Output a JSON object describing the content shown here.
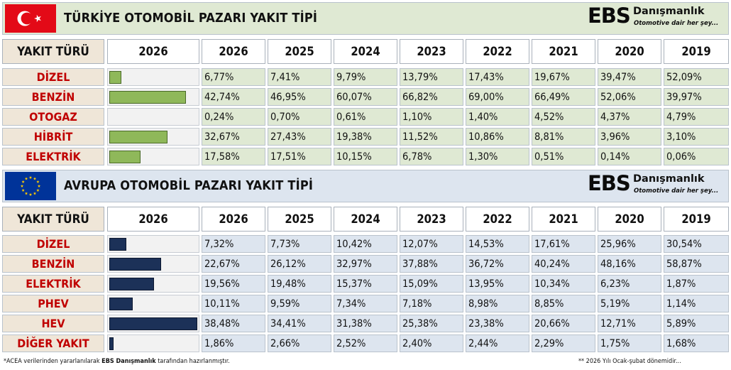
{
  "turkey": {
    "title": "TÜRKİYE OTOMOBİL PAZARI YAKIT TİPİ",
    "colors": {
      "banner": "#dfe9d3",
      "value_bg": "#dfe9d3",
      "bar": "#8fb85a",
      "label_text": "#c00000"
    }
  },
  "europe": {
    "title": "AVRUPA OTOMOBİL PAZARI YAKIT TİPİ",
    "colors": {
      "banner": "#dde5ef",
      "value_bg": "#dde5ef",
      "bar": "#1c3158",
      "label_text": "#c00000"
    }
  },
  "logo": {
    "brand": "EBS",
    "name": "Danışmanlık",
    "tagline": "Otomotive dair her şey..."
  },
  "footer": {
    "left_prefix": "*ACEA verilerinden yararlanılarak ",
    "left_brand": "EBS Danışmanlık",
    "left_suffix": " tarafından hazırlanmıştır.",
    "right": "** 2026 Yılı Ocak-şubat dönemidir..."
  },
  "chart_data": [
    {
      "type": "table",
      "title": "TÜRKİYE OTOMOBİL PAZARI YAKIT TİPİ",
      "header_label": "YAKIT TÜRÜ",
      "bar_column_label": "2026",
      "bar_max": 50,
      "years": [
        "2026",
        "2025",
        "2024",
        "2023",
        "2022",
        "2021",
        "2020",
        "2019"
      ],
      "rows": [
        {
          "fuel": "DİZEL",
          "bar": 6.77,
          "values": [
            "6,77%",
            "7,41%",
            "9,79%",
            "13,79%",
            "17,43%",
            "19,67%",
            "39,47%",
            "52,09%"
          ]
        },
        {
          "fuel": "BENZİN",
          "bar": 42.74,
          "values": [
            "42,74%",
            "46,95%",
            "60,07%",
            "66,82%",
            "69,00%",
            "66,49%",
            "52,06%",
            "39,97%"
          ]
        },
        {
          "fuel": "OTOGAZ",
          "bar": 0.24,
          "values": [
            "0,24%",
            "0,70%",
            "0,61%",
            "1,10%",
            "1,40%",
            "4,52%",
            "4,37%",
            "4,79%"
          ]
        },
        {
          "fuel": "HİBRİT",
          "bar": 32.67,
          "values": [
            "32,67%",
            "27,43%",
            "19,38%",
            "11,52%",
            "10,86%",
            "8,81%",
            "3,96%",
            "3,10%"
          ]
        },
        {
          "fuel": "ELEKTRİK",
          "bar": 17.58,
          "values": [
            "17,58%",
            "17,51%",
            "10,15%",
            "6,78%",
            "1,30%",
            "0,51%",
            "0,14%",
            "0,06%"
          ]
        }
      ]
    },
    {
      "type": "table",
      "title": "AVRUPA OTOMOBİL PAZARI YAKIT TİPİ",
      "header_label": "YAKIT TÜRÜ",
      "bar_column_label": "2026",
      "bar_max": 39,
      "years": [
        "2026",
        "2025",
        "2024",
        "2023",
        "2022",
        "2021",
        "2020",
        "2019"
      ],
      "rows": [
        {
          "fuel": "DİZEL",
          "bar": 7.32,
          "values": [
            "7,32%",
            "7,73%",
            "10,42%",
            "12,07%",
            "14,53%",
            "17,61%",
            "25,96%",
            "30,54%"
          ]
        },
        {
          "fuel": "BENZİN",
          "bar": 22.67,
          "values": [
            "22,67%",
            "26,12%",
            "32,97%",
            "37,88%",
            "36,72%",
            "40,24%",
            "48,16%",
            "58,87%"
          ]
        },
        {
          "fuel": "ELEKTRİK",
          "bar": 19.56,
          "values": [
            "19,56%",
            "19,48%",
            "15,37%",
            "15,09%",
            "13,95%",
            "10,34%",
            "6,23%",
            "1,87%"
          ]
        },
        {
          "fuel": "PHEV",
          "bar": 10.11,
          "values": [
            "10,11%",
            "9,59%",
            "7,34%",
            "7,18%",
            "8,98%",
            "8,85%",
            "5,19%",
            "1,14%"
          ]
        },
        {
          "fuel": "HEV",
          "bar": 38.48,
          "values": [
            "38,48%",
            "34,41%",
            "31,38%",
            "25,38%",
            "23,38%",
            "20,66%",
            "12,71%",
            "5,89%"
          ]
        },
        {
          "fuel": "DİĞER YAKIT",
          "bar": 1.86,
          "values": [
            "1,86%",
            "2,66%",
            "2,52%",
            "2,40%",
            "2,44%",
            "2,29%",
            "1,75%",
            "1,68%"
          ]
        }
      ]
    }
  ]
}
